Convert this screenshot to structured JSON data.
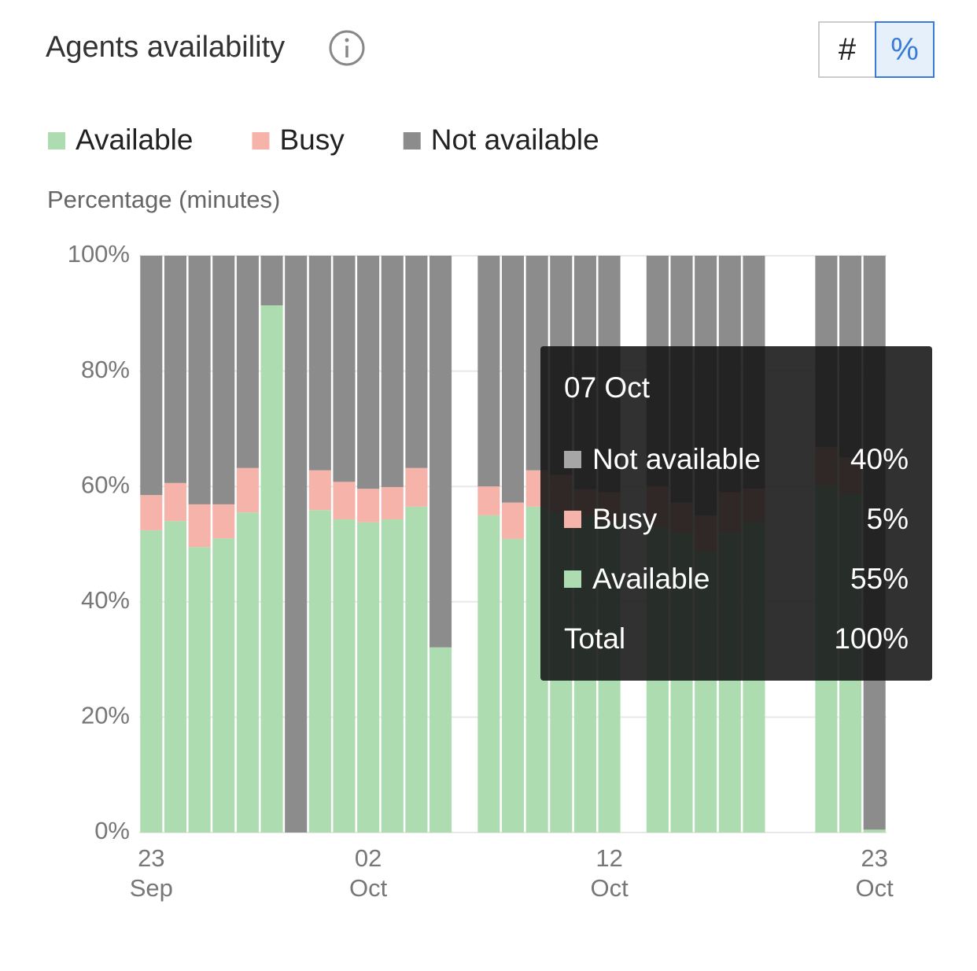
{
  "title": "Agents availability",
  "toggle": [
    "#",
    "%"
  ],
  "chart_data": {
    "type": "stacked-bar",
    "y_label": "Percentage (minutes)",
    "categories": [
      "23 Sep",
      null,
      null,
      null,
      null,
      null,
      null,
      null,
      null,
      "02 Oct",
      null,
      null,
      null,
      null,
      null,
      null,
      null,
      null,
      null,
      "12 Oct",
      null,
      null,
      null,
      null,
      null,
      null,
      null,
      null,
      null,
      null,
      "23 Oct"
    ],
    "series": [
      {
        "name": "Available",
        "color": "#acdcb0",
        "values": [
          52.4,
          54.0,
          49.5,
          51.0,
          55.5,
          91.4,
          0,
          55.9,
          54.3,
          53.8,
          54.3,
          56.5,
          32.1,
          null,
          55,
          50.9,
          56.5,
          55.5,
          55,
          54,
          null,
          53,
          52,
          48.8,
          52,
          53.9,
          null,
          null,
          60.2,
          58.7,
          0.5
        ]
      },
      {
        "name": "Busy",
        "color": "#f5b3aa",
        "values": [
          6.1,
          6.6,
          7.4,
          5.9,
          7.7,
          0,
          0,
          6.9,
          6.5,
          5.8,
          5.6,
          6.7,
          0,
          null,
          5,
          6.3,
          6.3,
          6.5,
          4.5,
          5,
          null,
          7,
          5.2,
          6.2,
          7,
          5.7,
          null,
          null,
          6.6,
          6.3,
          0
        ]
      },
      {
        "name": "Not available",
        "color": "#8c8c8c",
        "values": [
          41.5,
          39.4,
          43.1,
          43.1,
          36.8,
          8.6,
          100,
          37.2,
          39.2,
          40.4,
          40.1,
          36.8,
          67.9,
          null,
          40,
          42.8,
          37.2,
          38,
          40.5,
          41,
          null,
          40,
          42.8,
          45,
          41,
          40.4,
          null,
          null,
          33.2,
          35,
          99.5
        ]
      }
    ],
    "ylim": [
      0,
      100
    ],
    "yticks": [
      {
        "value": 0,
        "label": "0%"
      },
      {
        "value": 20,
        "label": "20%"
      },
      {
        "value": 40,
        "label": "40%"
      },
      {
        "value": 60,
        "label": "60%"
      },
      {
        "value": 80,
        "label": "80%"
      },
      {
        "value": 100,
        "label": "100%"
      }
    ],
    "grid": true,
    "tooltip": {
      "title": "07 Oct",
      "items": [
        {
          "name": "Not available",
          "value": "40%",
          "color": "#a6a6a6"
        },
        {
          "name": "Busy",
          "value": "5%",
          "color": "#f5b3aa"
        },
        {
          "name": "Available",
          "value": "55%",
          "color": "#acdcb0"
        }
      ],
      "total": {
        "name": "Total",
        "value": "100%"
      }
    }
  }
}
